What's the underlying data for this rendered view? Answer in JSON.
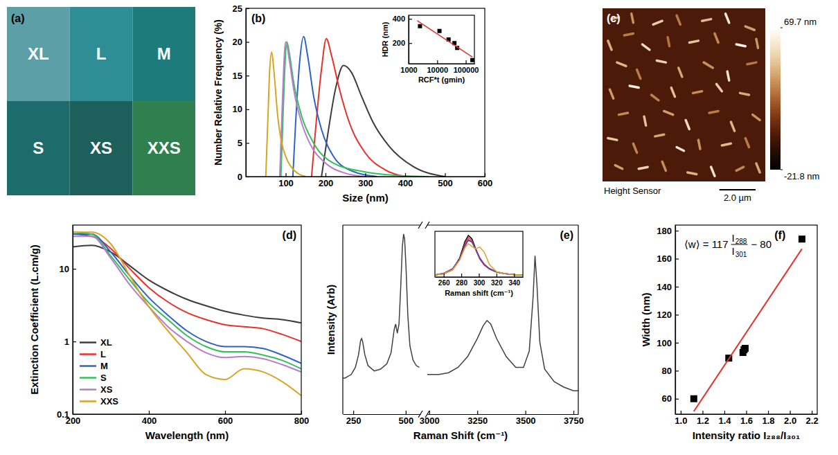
{
  "chart_data": [
    {
      "type": "swatch",
      "title": "(a)",
      "categories": [
        "XL",
        "L",
        "M",
        "S",
        "XS",
        "XXS"
      ],
      "colors": [
        "#5c9fa6",
        "#2f8e95",
        "#1d7b7c",
        "#1e6b6b",
        "#1c5f5b",
        "#2f7f4f"
      ]
    },
    {
      "type": "line",
      "title": "(b)",
      "xlabel": "Size (nm)",
      "ylabel": "Number Relative Frequency (%)",
      "xlim": [
        0,
        600
      ],
      "xticks": [
        100,
        200,
        300,
        400,
        500,
        600
      ],
      "ylim": [
        0,
        25
      ],
      "yticks": [
        0,
        5,
        10,
        15,
        20,
        25
      ],
      "series": [
        {
          "color": "#3c3c3c",
          "x": [
            190,
            205,
            225,
            245,
            265,
            290,
            320,
            360,
            420,
            500
          ],
          "values": [
            0,
            6,
            13,
            16.5,
            15.5,
            12,
            8,
            4.5,
            1.5,
            0
          ]
        },
        {
          "color": "#e8302a",
          "x": [
            165,
            175,
            190,
            202,
            215,
            235,
            260,
            300,
            350,
            400
          ],
          "values": [
            0,
            7,
            16,
            20.5,
            18,
            13,
            8,
            3.5,
            1,
            0
          ]
        },
        {
          "color": "#2f62c8",
          "x": [
            118,
            125,
            135,
            145,
            155,
            170,
            190,
            220,
            260,
            330
          ],
          "values": [
            0,
            8,
            17,
            20.8,
            18,
            12,
            7,
            3,
            1,
            0
          ]
        },
        {
          "color": "#33c05a",
          "x": [
            88,
            92,
            97,
            103,
            110,
            120,
            140,
            170,
            220,
            300,
            400,
            460
          ],
          "values": [
            0,
            7,
            15,
            20,
            18,
            14,
            9,
            5,
            2,
            0.7,
            0.1,
            0
          ]
        },
        {
          "color": "#b57cd0",
          "x": [
            85,
            90,
            95,
            100,
            110,
            120,
            140,
            160,
            200,
            250,
            300
          ],
          "values": [
            0,
            8,
            16,
            20,
            17,
            13,
            8,
            5,
            2,
            0.5,
            0
          ]
        },
        {
          "color": "#d9a520",
          "x": [
            50,
            55,
            60,
            65,
            70,
            80,
            90,
            100,
            120,
            150
          ],
          "values": [
            0,
            8,
            16,
            18.5,
            16,
            9,
            5,
            3,
            1,
            0
          ]
        }
      ]
    },
    {
      "type": "scatter",
      "log": "x",
      "xlabel": "RCF*t (gmin)",
      "ylabel": "HDR (nm)",
      "xlim": [
        1000,
        200000
      ],
      "xticks": [
        1000,
        10000,
        100000
      ],
      "ylim": [
        30,
        430
      ],
      "yticks": [
        200,
        400
      ],
      "series": [
        {
          "type": "scatter",
          "marker": "square",
          "color": "#000000",
          "x": [
            2500,
            12000,
            25000,
            40000,
            50000,
            170000
          ],
          "values": [
            340,
            300,
            230,
            200,
            160,
            60
          ]
        },
        {
          "type": "line",
          "color": "#e8302a",
          "x": [
            2000,
            170000
          ],
          "values": [
            385,
            85
          ]
        }
      ]
    },
    {
      "type": "image",
      "title": "(c)",
      "subtitle": "Height Sensor",
      "extent": [
        9,
        9.6
      ],
      "background": 0,
      "colorbar": {
        "range": [
          -21.8,
          69.7
        ],
        "ticks": [
          {
            "value": 69.7,
            "label": "69.7 nm"
          },
          {
            "value": -21.8,
            "label": "-21.8 nm"
          }
        ]
      },
      "scale_bar": {
        "value": 2.0,
        "label": "2.0 µm"
      },
      "rods": [
        [
          0.5,
          0.6,
          0.9,
          0.5,
          40
        ],
        [
          1.6,
          0.3,
          1.7,
          0.8,
          35
        ],
        [
          2.8,
          0.9,
          3.3,
          0.7,
          50
        ],
        [
          4.1,
          0.4,
          4.3,
          0.9,
          30
        ],
        [
          5.5,
          0.7,
          6.0,
          0.6,
          45
        ],
        [
          6.8,
          0.3,
          7.0,
          0.8,
          60
        ],
        [
          7.9,
          1.0,
          8.4,
          1.2,
          38
        ],
        [
          0.3,
          1.8,
          0.5,
          2.3,
          42
        ],
        [
          1.2,
          1.5,
          1.7,
          1.4,
          30
        ],
        [
          2.2,
          2.0,
          2.6,
          2.3,
          55
        ],
        [
          3.6,
          1.6,
          3.7,
          2.1,
          28
        ],
        [
          4.8,
          1.9,
          5.3,
          1.8,
          48
        ],
        [
          6.2,
          1.4,
          6.4,
          1.9,
          33
        ],
        [
          7.4,
          2.0,
          7.9,
          2.1,
          65
        ],
        [
          8.5,
          1.7,
          8.6,
          2.2,
          36
        ],
        [
          0.8,
          3.0,
          1.3,
          3.2,
          44
        ],
        [
          1.9,
          3.4,
          2.1,
          3.9,
          30
        ],
        [
          3.0,
          2.9,
          3.5,
          3.0,
          52
        ],
        [
          4.2,
          3.3,
          4.4,
          3.8,
          40
        ],
        [
          5.6,
          3.0,
          6.1,
          3.3,
          35
        ],
        [
          6.9,
          3.5,
          7.0,
          4.0,
          58
        ],
        [
          8.0,
          3.1,
          8.5,
          3.0,
          29
        ],
        [
          0.4,
          4.5,
          0.6,
          5.0,
          37
        ],
        [
          1.5,
          4.3,
          2.0,
          4.4,
          62
        ],
        [
          2.7,
          4.8,
          3.1,
          5.1,
          31
        ],
        [
          3.8,
          4.4,
          4.0,
          4.9,
          46
        ],
        [
          5.0,
          4.7,
          5.5,
          4.6,
          34
        ],
        [
          6.3,
          4.2,
          6.6,
          4.6,
          50
        ],
        [
          7.6,
          4.7,
          8.1,
          4.8,
          41
        ],
        [
          0.9,
          5.9,
          1.4,
          5.8,
          33
        ],
        [
          2.3,
          6.0,
          2.4,
          6.5,
          47
        ],
        [
          3.4,
          5.7,
          3.9,
          5.9,
          38
        ],
        [
          4.6,
          6.2,
          4.8,
          6.7,
          55
        ],
        [
          5.9,
          5.8,
          6.4,
          5.7,
          30
        ],
        [
          7.1,
          6.3,
          7.3,
          6.8,
          44
        ],
        [
          8.3,
          5.9,
          8.7,
          6.2,
          36
        ],
        [
          0.3,
          7.2,
          0.8,
          7.3,
          49
        ],
        [
          1.7,
          7.5,
          1.9,
          8.0,
          32
        ],
        [
          2.9,
          7.1,
          3.4,
          7.0,
          40
        ],
        [
          4.1,
          7.7,
          4.5,
          7.9,
          60
        ],
        [
          5.3,
          7.3,
          5.4,
          7.8,
          35
        ],
        [
          6.6,
          7.6,
          7.1,
          7.5,
          45
        ],
        [
          7.9,
          7.2,
          8.1,
          7.7,
          30
        ],
        [
          0.7,
          8.7,
          1.1,
          8.9,
          38
        ],
        [
          2.0,
          8.9,
          2.5,
          8.8,
          52
        ],
        [
          3.3,
          8.5,
          3.5,
          9.0,
          34
        ],
        [
          4.7,
          9.1,
          5.2,
          9.2,
          43
        ],
        [
          6.0,
          8.8,
          6.2,
          9.3,
          57
        ],
        [
          7.4,
          9.0,
          7.8,
          8.8,
          33
        ],
        [
          8.5,
          8.6,
          8.7,
          9.1,
          40
        ]
      ]
    },
    {
      "type": "line",
      "title": "(d)",
      "log": "y",
      "legend": "lower left",
      "xlabel": "Wavelength (nm)",
      "ylabel": "Extinction Coefficient (L.cm/g)",
      "xlim": [
        200,
        800
      ],
      "xticks": [
        200,
        400,
        600,
        800
      ],
      "ylim": [
        0.1,
        40
      ],
      "yticks": [
        0.1,
        1,
        10
      ],
      "x": [
        200,
        250,
        300,
        350,
        400,
        450,
        500,
        550,
        600,
        650,
        700,
        750,
        800
      ],
      "series": [
        {
          "name": "XL",
          "color": "#3c3c3c",
          "values": [
            20,
            21,
            17,
            11,
            7,
            5,
            3.8,
            3.1,
            2.6,
            2.3,
            2.1,
            2,
            1.8
          ]
        },
        {
          "name": "L",
          "color": "#e8302a",
          "values": [
            30,
            28,
            19,
            10,
            5.5,
            3.5,
            2.5,
            2,
            1.7,
            1.6,
            1.5,
            1.25,
            1
          ]
        },
        {
          "name": "M",
          "color": "#2f62c8",
          "values": [
            30,
            30,
            17,
            8,
            4,
            2.3,
            1.4,
            1,
            0.85,
            0.85,
            0.8,
            0.65,
            0.5
          ]
        },
        {
          "name": "S",
          "color": "#33c05a",
          "values": [
            32,
            30,
            15,
            7,
            3.4,
            2,
            1.2,
            0.85,
            0.72,
            0.72,
            0.65,
            0.55,
            0.42
          ]
        },
        {
          "name": "XS",
          "color": "#b57cd0",
          "values": [
            28,
            28,
            14,
            6,
            3,
            1.6,
            1,
            0.7,
            0.6,
            0.62,
            0.58,
            0.48,
            0.38
          ]
        },
        {
          "name": "XXS",
          "color": "#d9a520",
          "values": [
            32,
            32,
            22,
            8,
            3,
            1.4,
            0.7,
            0.35,
            0.3,
            0.42,
            0.38,
            0.28,
            0.18
          ]
        }
      ]
    },
    {
      "type": "line",
      "ylabel": "Intensity (Arb)",
      "tick_labels": "x",
      "xlim": [
        200,
        570
      ],
      "xticks": [
        250,
        500
      ],
      "ylim": [
        0,
        1.05
      ],
      "x": [
        200,
        210,
        240,
        260,
        275,
        285,
        290,
        295,
        305,
        320,
        350,
        380,
        410,
        430,
        445,
        452,
        460,
        468,
        476,
        484,
        490,
        495,
        502,
        510,
        520,
        535,
        550,
        565
      ],
      "series": [
        {
          "color": "#404040",
          "values": [
            0.2,
            0.2,
            0.22,
            0.26,
            0.33,
            0.41,
            0.42,
            0.4,
            0.33,
            0.27,
            0.24,
            0.25,
            0.28,
            0.34,
            0.47,
            0.5,
            0.45,
            0.5,
            0.7,
            0.93,
            1.0,
            0.97,
            0.8,
            0.55,
            0.38,
            0.3,
            0.27,
            0.26
          ]
        }
      ]
    },
    {
      "type": "line",
      "title": "(e)",
      "xlabel": "Raman Shift (cm⁻¹)",
      "tick_labels": "x",
      "xlim": [
        2990,
        3775
      ],
      "xticks": [
        3000,
        3250,
        3500,
        3750
      ],
      "ylim": [
        0,
        1.05
      ],
      "x": [
        2990,
        3000,
        3050,
        3100,
        3150,
        3200,
        3250,
        3280,
        3300,
        3320,
        3350,
        3400,
        3450,
        3490,
        3520,
        3540,
        3550,
        3560,
        3575,
        3600,
        3650,
        3700,
        3750,
        3775
      ],
      "series": [
        {
          "color": "#404040",
          "values": [
            0.22,
            0.22,
            0.22,
            0.23,
            0.26,
            0.32,
            0.42,
            0.49,
            0.52,
            0.5,
            0.42,
            0.32,
            0.26,
            0.26,
            0.35,
            0.65,
            0.88,
            0.72,
            0.4,
            0.25,
            0.18,
            0.15,
            0.13,
            0.13
          ]
        }
      ]
    },
    {
      "type": "line",
      "xlabel": "Raman shift (cm⁻¹)",
      "tick_labels": "x",
      "xlim": [
        250,
        350
      ],
      "xticks": [
        260,
        280,
        300,
        320,
        340
      ],
      "ylim": [
        0,
        1.1
      ],
      "x": [
        250,
        260,
        270,
        278,
        284,
        288,
        292,
        296,
        301,
        306,
        312,
        320,
        330,
        340,
        350
      ],
      "series": [
        {
          "color": "#000000",
          "values": [
            0.05,
            0.08,
            0.18,
            0.45,
            0.85,
            1.0,
            0.92,
            0.7,
            0.45,
            0.3,
            0.2,
            0.12,
            0.08,
            0.06,
            0.05
          ]
        },
        {
          "color": "#e8302a",
          "values": [
            0.05,
            0.08,
            0.17,
            0.42,
            0.8,
            0.95,
            0.88,
            0.67,
            0.43,
            0.29,
            0.19,
            0.12,
            0.08,
            0.06,
            0.05
          ]
        },
        {
          "color": "#2b4fc4",
          "values": [
            0.05,
            0.09,
            0.19,
            0.42,
            0.76,
            0.9,
            0.85,
            0.68,
            0.45,
            0.3,
            0.2,
            0.12,
            0.08,
            0.06,
            0.05
          ]
        },
        {
          "color": "#7b3fa0",
          "values": [
            0.05,
            0.09,
            0.2,
            0.43,
            0.74,
            0.88,
            0.84,
            0.68,
            0.46,
            0.31,
            0.2,
            0.12,
            0.08,
            0.06,
            0.05
          ]
        },
        {
          "color": "#e0a030",
          "values": [
            0.05,
            0.08,
            0.17,
            0.4,
            0.7,
            0.8,
            0.74,
            0.68,
            0.72,
            0.6,
            0.3,
            0.13,
            0.08,
            0.06,
            0.05
          ]
        }
      ]
    },
    {
      "type": "scatter",
      "title": "(f)",
      "xlabel": "Intensity ratio I₂₈₈/I₃₀₁",
      "ylabel": "Width (nm)",
      "xlim": [
        0.95,
        2.25
      ],
      "xticks": [
        {
          "value": 1,
          "label": "1.0"
        },
        1.2,
        1.4,
        1.6,
        1.8,
        {
          "value": 2,
          "label": "2.0"
        },
        2.2
      ],
      "ylim": [
        49,
        184
      ],
      "yticks": [
        60,
        80,
        100,
        120,
        140,
        160,
        180
      ],
      "annotation": {
        "prefix": "⟨w⟩ = 117",
        "numerator": "I",
        "numerator_sub": "288",
        "denominator": "I",
        "denominator_sub": "301",
        "suffix": "− 80"
      },
      "series": [
        {
          "type": "scatter",
          "marker": "square",
          "color": "#000000",
          "x": [
            1.12,
            1.44,
            1.57,
            1.58,
            1.59,
            2.11
          ],
          "values": [
            60,
            89,
            93,
            95,
            96,
            174
          ]
        },
        {
          "type": "line",
          "color": "#e8302a",
          "x": [
            1.12,
            2.11
          ],
          "values": [
            51,
            167
          ]
        }
      ]
    }
  ]
}
